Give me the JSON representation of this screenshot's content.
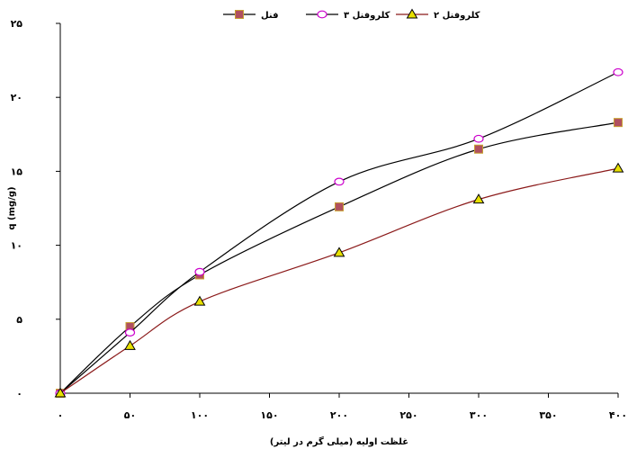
{
  "chart_data": {
    "type": "line",
    "xlabel": "غلظت اولیه (میلی گرم در لیتر)",
    "ylabel": "q (mg/g)",
    "x_ticks": [
      "۰",
      "۵۰",
      "۱۰۰",
      "۱۵۰",
      "۲۰۰",
      "۲۵۰",
      "۳۰۰",
      "۳۵۰",
      "۴۰۰"
    ],
    "y_ticks": [
      "۰",
      "۵",
      "۱۰",
      "۱۵",
      "۲۰",
      "۲۵"
    ],
    "xlim": [
      0,
      400
    ],
    "ylim": [
      0,
      25
    ],
    "grid": false,
    "legend_position": "top",
    "x": [
      0,
      50,
      100,
      200,
      300,
      400
    ],
    "series": [
      {
        "name": "فنل",
        "values": [
          0,
          4.5,
          8.0,
          12.6,
          16.5,
          18.3
        ],
        "color": "#000000",
        "marker": "square",
        "marker_fill": "#b05060",
        "marker_stroke": "#c8a030"
      },
      {
        "name": "کلروفنل ۳",
        "values": [
          0,
          4.1,
          8.2,
          14.3,
          17.2,
          21.7
        ],
        "color": "#000000",
        "marker": "circle",
        "marker_fill": "#ffffff",
        "marker_stroke": "#cc00cc"
      },
      {
        "name": "کلروفنل ۲",
        "values": [
          0,
          3.2,
          6.2,
          9.5,
          13.1,
          15.2
        ],
        "color": "#8b1a1a",
        "marker": "triangle",
        "marker_fill": "#e8e000",
        "marker_stroke": "#000000"
      }
    ]
  }
}
